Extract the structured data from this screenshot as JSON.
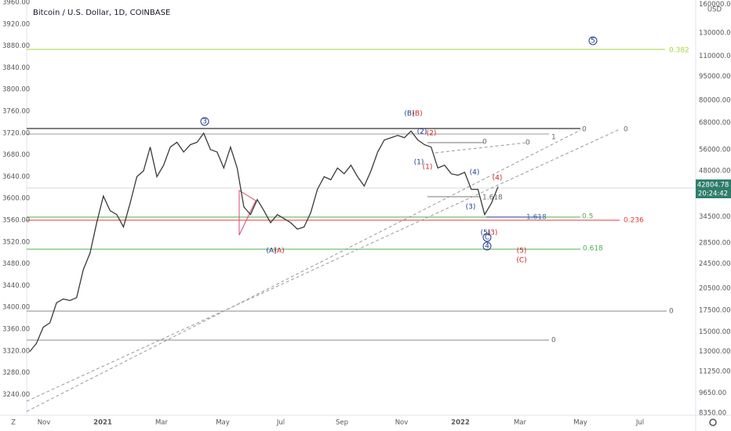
{
  "header": {
    "title": "Bitcoin / U.S. Dollar, 1D, COINBASE",
    "currency": "USD"
  },
  "left_axis": [
    "3960.00",
    "3920.00",
    "3880.00",
    "3840.00",
    "3800.00",
    "3760.00",
    "3720.00",
    "3680.00",
    "3640.00",
    "3600.00",
    "3560.00",
    "3520.00",
    "3480.00",
    "3440.00",
    "3400.00",
    "3360.00",
    "3320.00",
    "3280.00",
    "3240.00"
  ],
  "price": {
    "ylim": [
      8200,
      165000
    ],
    "right_axis": [
      {
        "value": 160000,
        "label": "160000.00"
      },
      {
        "value": 130000,
        "label": "130000.00"
      },
      {
        "value": 110000,
        "label": "110000.00"
      },
      {
        "value": 95000,
        "label": "95000.00"
      },
      {
        "value": 80000,
        "label": "80000.00"
      },
      {
        "value": 68000,
        "label": "68000.00"
      },
      {
        "value": 56000,
        "label": "56000.00"
      },
      {
        "value": 48000,
        "label": "48000.00"
      },
      {
        "value": 34500,
        "label": "34500.00"
      },
      {
        "value": 28500,
        "label": "28500.00"
      },
      {
        "value": 24500,
        "label": "24500.00"
      },
      {
        "value": 20500,
        "label": "20500.00"
      },
      {
        "value": 17500,
        "label": "17500.00"
      },
      {
        "value": 15000,
        "label": "15000.00"
      },
      {
        "value": 13000,
        "label": "13000.00"
      },
      {
        "value": 11250,
        "label": "11250.00"
      },
      {
        "value": 9650,
        "label": "9650.00"
      },
      {
        "value": 8350,
        "label": "8350.00"
      }
    ],
    "values": [
      13000,
      13800,
      15500,
      16000,
      18500,
      19000,
      18800,
      19200,
      23500,
      26500,
      33000,
      40000,
      36000,
      35000,
      32000,
      38000,
      46000,
      48000,
      57000,
      46000,
      50000,
      57000,
      59000,
      55000,
      58000,
      59000,
      63000,
      56000,
      55000,
      49000,
      57000,
      49000,
      37000,
      35000,
      39000,
      36000,
      33000,
      35000,
      34000,
      33000,
      31500,
      32000,
      35500,
      42000,
      46000,
      45000,
      49000,
      47000,
      50000,
      46000,
      43000,
      48000,
      55000,
      60000,
      61000,
      62000,
      61000,
      64000,
      60000,
      58000,
      57000,
      49000,
      50000,
      47000,
      46500,
      47500,
      42000,
      42000,
      35000,
      38000,
      42800
    ],
    "last_price": "42804.78",
    "countdown": "20:24:42"
  },
  "x_axis": [
    "Nov",
    "2021",
    "Mar",
    "May",
    "Jul",
    "Sep",
    "Nov",
    "2022",
    "Mar",
    "May",
    "Jul"
  ],
  "waves": [
    "3",
    "(B)",
    "(B)",
    "(2)",
    "(2)",
    "(1)",
    "(1)",
    "(4)",
    "(4)",
    "(3)",
    "(A)",
    "(A)",
    "5",
    "(5)",
    "(3)",
    "C",
    "4",
    "(5)",
    "(C)"
  ],
  "fib_labels": [
    "0.382",
    "0.5",
    "0.236",
    "0.618",
    "1.618",
    "1.618",
    "0",
    "0",
    "1",
    "0",
    "0",
    "0",
    "0"
  ],
  "corner": "Z"
}
